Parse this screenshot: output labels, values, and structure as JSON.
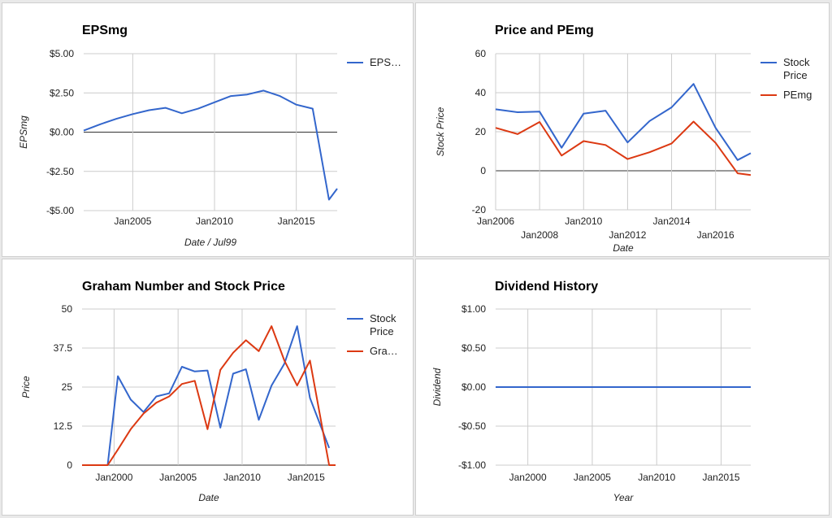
{
  "colors": {
    "blue": "#3366cc",
    "red": "#dc3912",
    "grid": "#cccccc",
    "baseline": "#333333"
  },
  "chart_data": [
    {
      "type": "line",
      "title": "EPSmg",
      "xlabel": "Date / Jul99",
      "ylabel": "EPSmg",
      "xlim": [
        2002,
        2017.5
      ],
      "ylim": [
        -5,
        5
      ],
      "yticks": [
        5,
        2.5,
        0,
        -2.5,
        -5
      ],
      "ytick_labels": [
        "$5.00",
        "$2.50",
        "$0.00",
        "-$2.50",
        "-$5.00"
      ],
      "xticks": [
        2005,
        2010,
        2015
      ],
      "xtick_labels": [
        "Jan2005",
        "Jan2010",
        "Jan2015"
      ],
      "grid": true,
      "legend": "right",
      "series": [
        {
          "name": "EPS…",
          "color": "blue",
          "x": [
            2002,
            2003,
            2004,
            2005,
            2006,
            2007,
            2008,
            2009,
            2010,
            2011,
            2012,
            2013,
            2014,
            2015,
            2016,
            2017,
            2017.5
          ],
          "values": [
            0.1,
            0.5,
            0.85,
            1.15,
            1.4,
            1.55,
            1.2,
            1.5,
            1.9,
            2.3,
            2.4,
            2.65,
            2.3,
            1.75,
            1.5,
            -4.3,
            -3.6
          ]
        }
      ]
    },
    {
      "type": "line",
      "title": "Price and PEmg",
      "xlabel": "Date",
      "ylabel": "Stock Price",
      "xlim": [
        2006,
        2017.6
      ],
      "ylim": [
        -20,
        60
      ],
      "yticks": [
        60,
        40,
        20,
        0,
        -20
      ],
      "ytick_labels": [
        "60",
        "40",
        "20",
        "0",
        "-20"
      ],
      "xticks": [
        2006,
        2008,
        2010,
        2012,
        2014,
        2016
      ],
      "xtick_labels": [
        "Jan2006",
        "Jan2008",
        "Jan2010",
        "Jan2012",
        "Jan2014",
        "Jan2016"
      ],
      "grid": true,
      "legend": "right",
      "series": [
        {
          "name": "Stock Price",
          "color": "blue",
          "x": [
            2006,
            2007,
            2008,
            2009,
            2010,
            2011,
            2012,
            2013,
            2014,
            2015,
            2016,
            2017,
            2017.6
          ],
          "values": [
            31.5,
            30,
            30.3,
            11.8,
            29.3,
            30.8,
            14.5,
            25.5,
            32.5,
            44.5,
            22,
            5.5,
            9
          ]
        },
        {
          "name": "PEmg",
          "color": "red",
          "x": [
            2006,
            2007,
            2008,
            2009,
            2010,
            2011,
            2012,
            2013,
            2014,
            2015,
            2016,
            2017,
            2017.6
          ],
          "values": [
            22,
            18.8,
            25,
            7.8,
            15.2,
            13.2,
            6,
            9.5,
            14,
            25.2,
            14.3,
            -1.3,
            -2.2
          ]
        }
      ]
    },
    {
      "type": "line",
      "title": "Graham Number and Stock Price",
      "xlabel": "Date",
      "ylabel": "Price",
      "xlim": [
        1997.5,
        2017.3
      ],
      "ylim": [
        0,
        50
      ],
      "yticks": [
        50,
        37.5,
        25,
        12.5,
        0
      ],
      "ytick_labels": [
        "50",
        "37.5",
        "25",
        "12.5",
        "0"
      ],
      "xticks": [
        2000,
        2005,
        2010,
        2015
      ],
      "xtick_labels": [
        "Jan2000",
        "Jan2005",
        "Jan2010",
        "Jan2015"
      ],
      "grid": true,
      "legend": "right",
      "series": [
        {
          "name": "Stock Price",
          "color": "blue",
          "x": [
            1999.5,
            2000.3,
            2001.3,
            2002.3,
            2003.3,
            2004.3,
            2005.3,
            2006.3,
            2007.3,
            2008.3,
            2009.3,
            2010.3,
            2011.3,
            2012.3,
            2013.3,
            2014.3,
            2015.3,
            2016.8
          ],
          "values": [
            0,
            28.5,
            21,
            17,
            22,
            23,
            31.5,
            30,
            30.3,
            12,
            29.3,
            30.7,
            14.5,
            25.5,
            32.5,
            44.5,
            21.5,
            5.5
          ]
        },
        {
          "name": "Gra…",
          "color": "red",
          "x": [
            1997.5,
            1999.5,
            2000.3,
            2001.3,
            2002.3,
            2003.3,
            2004.3,
            2005.3,
            2006.3,
            2007.3,
            2008.3,
            2009.3,
            2010.3,
            2011.3,
            2012.3,
            2013.3,
            2014.3,
            2015.3,
            2016.8,
            2017.3
          ],
          "values": [
            0,
            0,
            5,
            11.5,
            16.5,
            20,
            22,
            26,
            27,
            11.5,
            30.5,
            36,
            40,
            36.5,
            44.5,
            33.5,
            25.5,
            33.5,
            0,
            0
          ]
        }
      ]
    },
    {
      "type": "line",
      "title": "Dividend History",
      "xlabel": "Year",
      "ylabel": "Dividend",
      "xlim": [
        1997.5,
        2017.3
      ],
      "ylim": [
        -1,
        1
      ],
      "yticks": [
        1,
        0.5,
        0,
        -0.5,
        -1
      ],
      "ytick_labels": [
        "$1.00",
        "$0.50",
        "$0.00",
        "-$0.50",
        "-$1.00"
      ],
      "xticks": [
        2000,
        2005,
        2010,
        2015
      ],
      "xtick_labels": [
        "Jan2000",
        "Jan2005",
        "Jan2010",
        "Jan2015"
      ],
      "grid": true,
      "legend": "none",
      "series": [
        {
          "color": "blue",
          "x": [
            1997.5,
            2017.3
          ],
          "values": [
            0,
            0
          ]
        }
      ]
    }
  ]
}
